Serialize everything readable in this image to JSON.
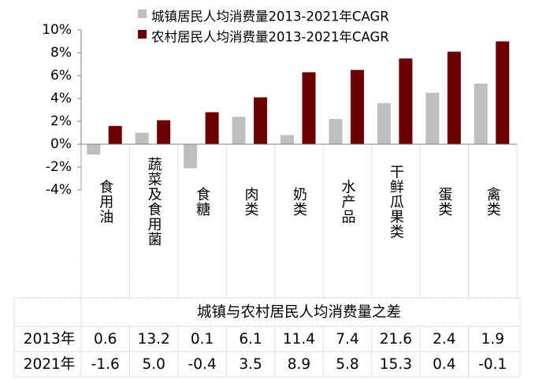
{
  "colors": {
    "urban": "#bfbfbf",
    "rural": "#6b0000",
    "axis": "#7f7f7f",
    "divider": "#c0c0c0"
  },
  "chart_data": {
    "type": "bar",
    "categories": [
      "食用油",
      "蔬菜及食用菌",
      "食糖",
      "肉类",
      "奶类",
      "水产品",
      "干鲜瓜果类",
      "蛋类",
      "禽类"
    ],
    "series": [
      {
        "name": "城镇居民人均消费量2013-2021年CAGR",
        "color": "#bfbfbf",
        "values": [
          -0.9,
          1.0,
          -2.1,
          2.4,
          0.8,
          2.2,
          3.6,
          4.5,
          5.3
        ]
      },
      {
        "name": "农村居民人均消费量2013-2021年CAGR",
        "color": "#6b0000",
        "values": [
          1.6,
          2.1,
          2.8,
          4.1,
          6.3,
          6.5,
          7.5,
          8.1,
          9.0
        ]
      }
    ],
    "y_ticks": [
      "10%",
      "8%",
      "6%",
      "4%",
      "2%",
      "0%",
      "-2%",
      "-4%"
    ],
    "ylim": [
      -4,
      10
    ],
    "ytick_step": 2,
    "legend_position": "top",
    "grid": false,
    "table": {
      "title": "城镇与农村居民人均消费量之差",
      "rows": [
        {
          "label": "2013年",
          "values": [
            "0.6",
            "13.2",
            "0.1",
            "6.1",
            "11.4",
            "7.4",
            "21.6",
            "2.4",
            "1.9"
          ]
        },
        {
          "label": "2021年",
          "values": [
            "-1.6",
            "5.0",
            "-0.4",
            "3.5",
            "8.9",
            "5.8",
            "15.3",
            "0.4",
            "-0.1"
          ]
        }
      ]
    }
  }
}
